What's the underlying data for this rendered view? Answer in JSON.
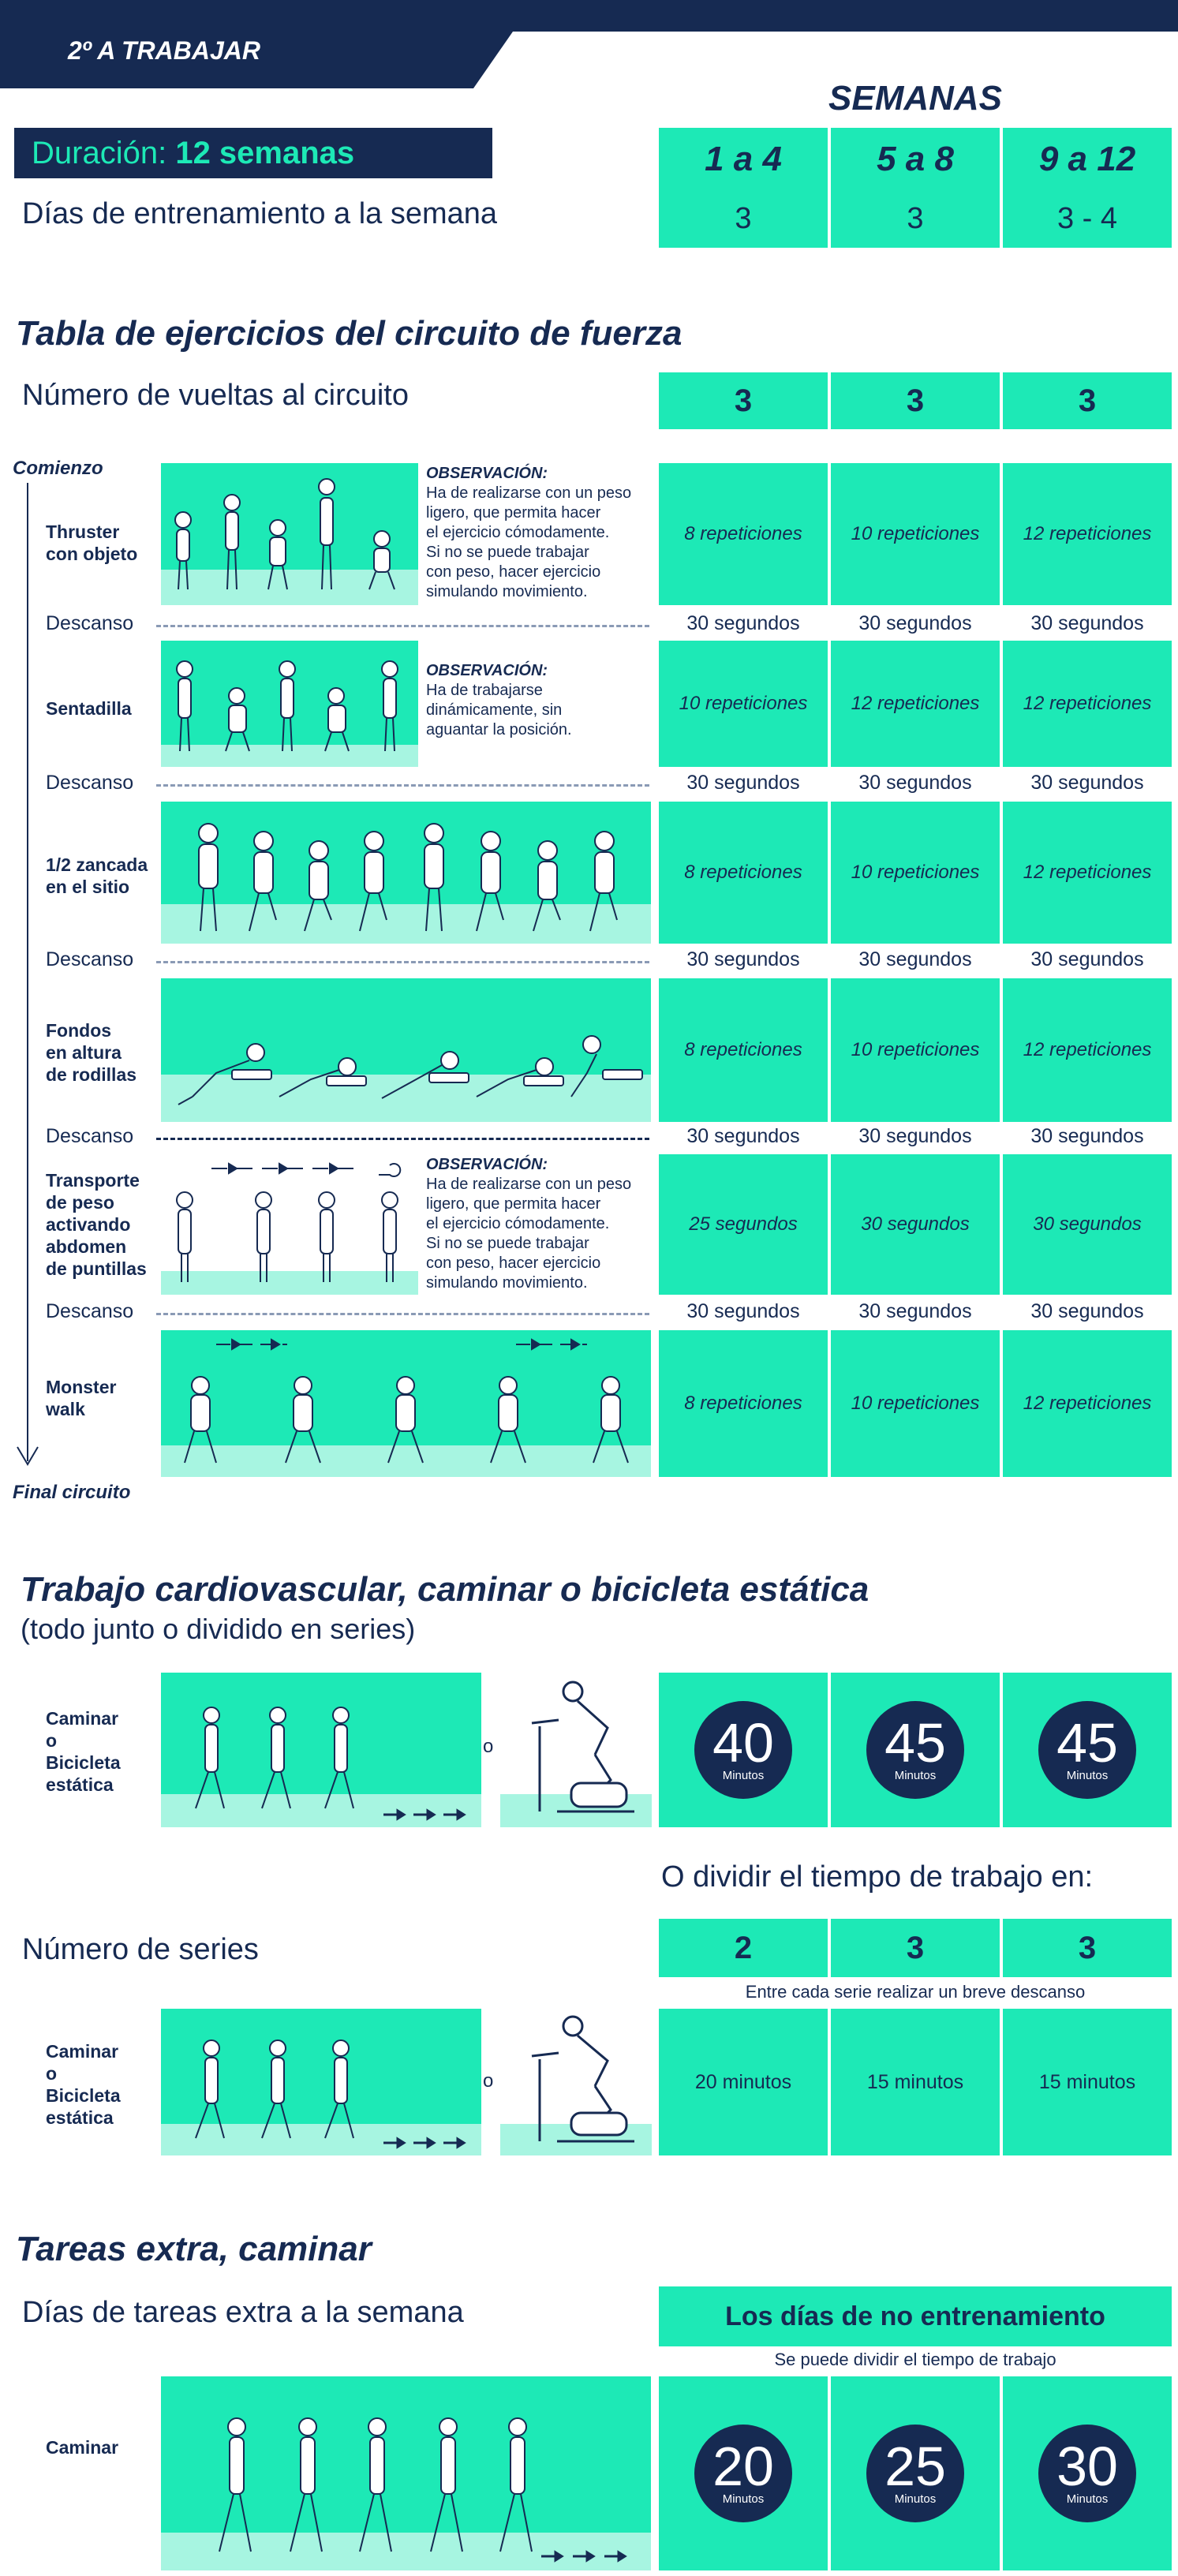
{
  "header": {
    "title": "2º A TRABAJAR"
  },
  "weeks_title": "SEMANAS",
  "weeks": [
    "1 a 4",
    "5 a 8",
    "9 a 12"
  ],
  "duration": {
    "label": "Duración:",
    "value": "12 semanas"
  },
  "training_days": {
    "label": "Días de entrenamiento a la semana",
    "values": [
      "3",
      "3",
      "3 - 4"
    ]
  },
  "strength": {
    "title": "Tabla de ejercicios del circuito de fuerza",
    "laps_label": "Número de vueltas al circuito",
    "laps": [
      "3",
      "3",
      "3"
    ],
    "start_label": "Comienzo",
    "end_label": "Final circuito",
    "rest_label": "Descanso",
    "exercises": [
      {
        "name": "Thruster\ncon objeto",
        "obs_title": "OBSERVACIÓN:",
        "obs": "Ha de realizarse con un peso\nligero, que permita hacer\nel ejercicio cómodamente.\nSi no se puede trabajar\ncon peso, hacer ejercicio\nsimulando movimiento.",
        "values": [
          "8 repeticiones",
          "10 repeticiones",
          "12 repeticiones"
        ],
        "rest": [
          "30 segundos",
          "30 segundos",
          "30 segundos"
        ]
      },
      {
        "name": "Sentadilla",
        "obs_title": "OBSERVACIÓN:",
        "obs": "Ha de trabajarse\ndinámicamente, sin\naguantar la posición.",
        "values": [
          "10 repeticiones",
          "12 repeticiones",
          "12 repeticiones"
        ],
        "rest": [
          "30 segundos",
          "30 segundos",
          "30 segundos"
        ]
      },
      {
        "name": "1/2 zancada\nen el sitio",
        "values": [
          "8 repeticiones",
          "10 repeticiones",
          "12 repeticiones"
        ],
        "rest": [
          "30 segundos",
          "30 segundos",
          "30 segundos"
        ]
      },
      {
        "name": "Fondos\nen altura\nde rodillas",
        "values": [
          "8 repeticiones",
          "10 repeticiones",
          "12 repeticiones"
        ],
        "rest": [
          "30 segundos",
          "30 segundos",
          "30 segundos"
        ]
      },
      {
        "name": "Transporte\nde peso\nactivando\nabdomen\nde puntillas",
        "obs_title": "OBSERVACIÓN:",
        "obs": "Ha de realizarse con un peso\nligero, que permita hacer\nel ejercicio cómodamente.\nSi no se puede trabajar\ncon peso, hacer ejercicio\nsimulando movimiento.",
        "values": [
          "25 segundos",
          "30 segundos",
          "30 segundos"
        ],
        "rest": [
          "30 segundos",
          "30 segundos",
          "30 segundos"
        ]
      },
      {
        "name": "Monster\nwalk",
        "values": [
          "8 repeticiones",
          "10 repeticiones",
          "12 repeticiones"
        ]
      }
    ]
  },
  "cardio": {
    "title": "Trabajo cardiovascular, caminar o bicicleta estática",
    "subtitle": "(todo junto o dividido en series)",
    "activity_label": "Caminar\no\nBicicleta\nestática",
    "or": "o",
    "minutes": [
      "40",
      "45",
      "45"
    ],
    "unit": "Minutos",
    "divide_label": "O dividir el tiempo de trabajo en:",
    "series_label": "Número de series",
    "series": [
      "2",
      "3",
      "3"
    ],
    "series_note": "Entre cada serie realizar un breve descanso",
    "series_times": [
      "20 minutos",
      "15 minutos",
      "15 minutos"
    ]
  },
  "extra": {
    "title": "Tareas extra, caminar",
    "days_label": "Días de tareas extra a la semana",
    "days_value": "Los días de no entrenamiento",
    "note": "Se puede dividir el tiempo de trabajo",
    "activity_label": "Caminar",
    "minutes": [
      "20",
      "25",
      "30"
    ],
    "unit": "Minutos"
  },
  "colors": {
    "navy": "#162a52",
    "teal": "#1de9b6",
    "light_teal": "#a7f5e1"
  }
}
